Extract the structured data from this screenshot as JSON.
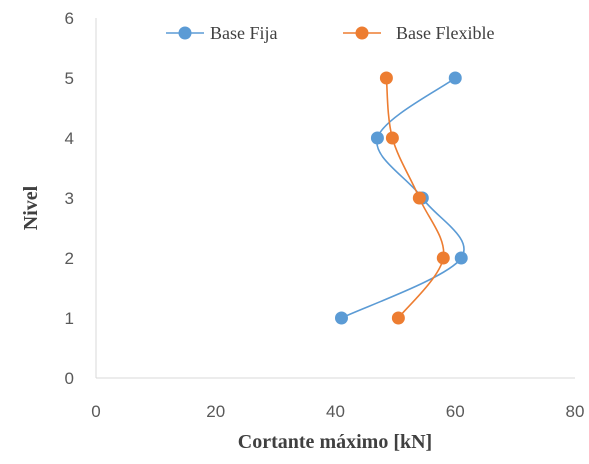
{
  "chart_data": {
    "type": "scatter",
    "xlabel": "Cortante máximo [kN]",
    "ylabel": "Nivel",
    "xlim": [
      0,
      80
    ],
    "ylim": [
      0,
      6
    ],
    "x_ticks": [
      0,
      20,
      40,
      60,
      80
    ],
    "y_ticks": [
      0,
      1,
      2,
      3,
      4,
      5,
      6
    ],
    "grid": false,
    "legend_position": "top",
    "smoothed_lines": true,
    "series": [
      {
        "name": "Base Fija",
        "color": "#5B9BD5",
        "points": [
          {
            "x": 41,
            "y": 1
          },
          {
            "x": 61,
            "y": 2
          },
          {
            "x": 54.5,
            "y": 3
          },
          {
            "x": 47,
            "y": 4
          },
          {
            "x": 60,
            "y": 5
          }
        ]
      },
      {
        "name": "Base Flexible",
        "color": "#ED7D31",
        "points": [
          {
            "x": 50.5,
            "y": 1
          },
          {
            "x": 58,
            "y": 2
          },
          {
            "x": 54,
            "y": 3
          },
          {
            "x": 49.5,
            "y": 4
          },
          {
            "x": 48.5,
            "y": 5
          }
        ]
      }
    ]
  }
}
